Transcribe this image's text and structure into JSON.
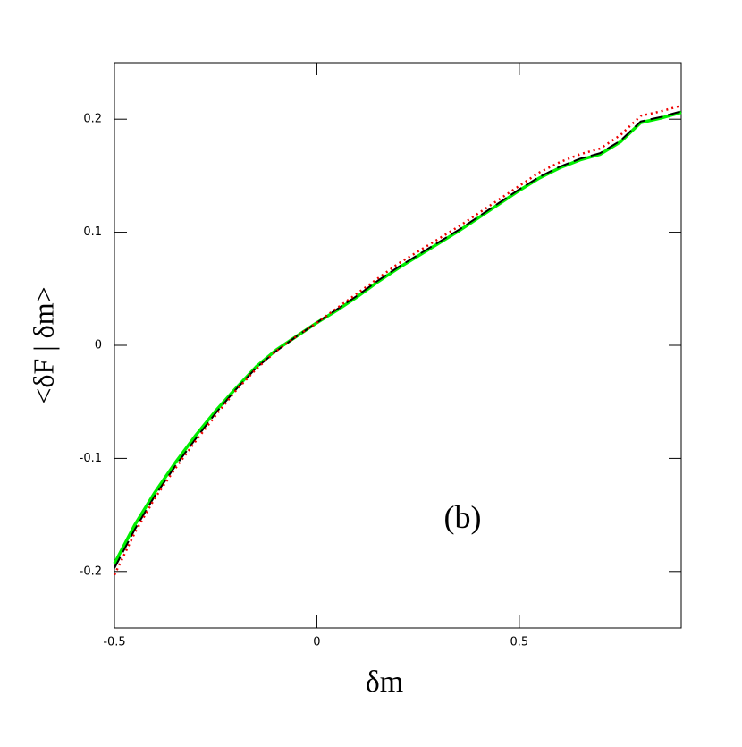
{
  "chart_data": {
    "type": "line",
    "xlabel": "δm",
    "ylabel": "<δF | δm>",
    "annotation": "(b)",
    "annotation_at": [
      0.36,
      -0.155
    ],
    "x": [
      -0.5,
      -0.45,
      -0.4,
      -0.35,
      -0.3,
      -0.25,
      -0.2,
      -0.15,
      -0.1,
      -0.05,
      0,
      0.05,
      0.1,
      0.15,
      0.2,
      0.25,
      0.3,
      0.35,
      0.4,
      0.45,
      0.5,
      0.55,
      0.6,
      0.65,
      0.7,
      0.75,
      0.8,
      0.85,
      0.9
    ],
    "series": [
      {
        "color": "#00ee00",
        "style": "solid",
        "values": [
          -0.193,
          -0.159,
          -0.13,
          -0.104,
          -0.08,
          -0.058,
          -0.038,
          -0.019,
          -0.004,
          0.008,
          0.02,
          0.031,
          0.043,
          0.056,
          0.068,
          0.079,
          0.09,
          0.101,
          0.113,
          0.125,
          0.137,
          0.148,
          0.157,
          0.164,
          0.169,
          0.18,
          0.197,
          0.201,
          0.206
        ]
      },
      {
        "color": "#000000",
        "style": "dashed",
        "values": [
          -0.197,
          -0.163,
          -0.133,
          -0.107,
          -0.083,
          -0.06,
          -0.039,
          -0.02,
          -0.005,
          0.008,
          0.02,
          0.032,
          0.044,
          0.057,
          0.069,
          0.08,
          0.091,
          0.102,
          0.114,
          0.126,
          0.138,
          0.149,
          0.158,
          0.165,
          0.17,
          0.181,
          0.198,
          0.202,
          0.207
        ]
      },
      {
        "color": "#ee0000",
        "style": "dotted",
        "values": [
          -0.203,
          -0.166,
          -0.135,
          -0.109,
          -0.085,
          -0.062,
          -0.04,
          -0.021,
          -0.005,
          0.008,
          0.02,
          0.033,
          0.046,
          0.059,
          0.072,
          0.083,
          0.094,
          0.105,
          0.117,
          0.129,
          0.141,
          0.153,
          0.162,
          0.169,
          0.174,
          0.186,
          0.203,
          0.207,
          0.212
        ]
      }
    ],
    "xlim": [
      -0.5,
      0.9
    ],
    "ylim": [
      -0.25,
      0.25
    ],
    "xticks": [
      -0.5,
      0,
      0.5
    ],
    "yticks": [
      -0.2,
      -0.1,
      0,
      0.1,
      0.2
    ]
  }
}
